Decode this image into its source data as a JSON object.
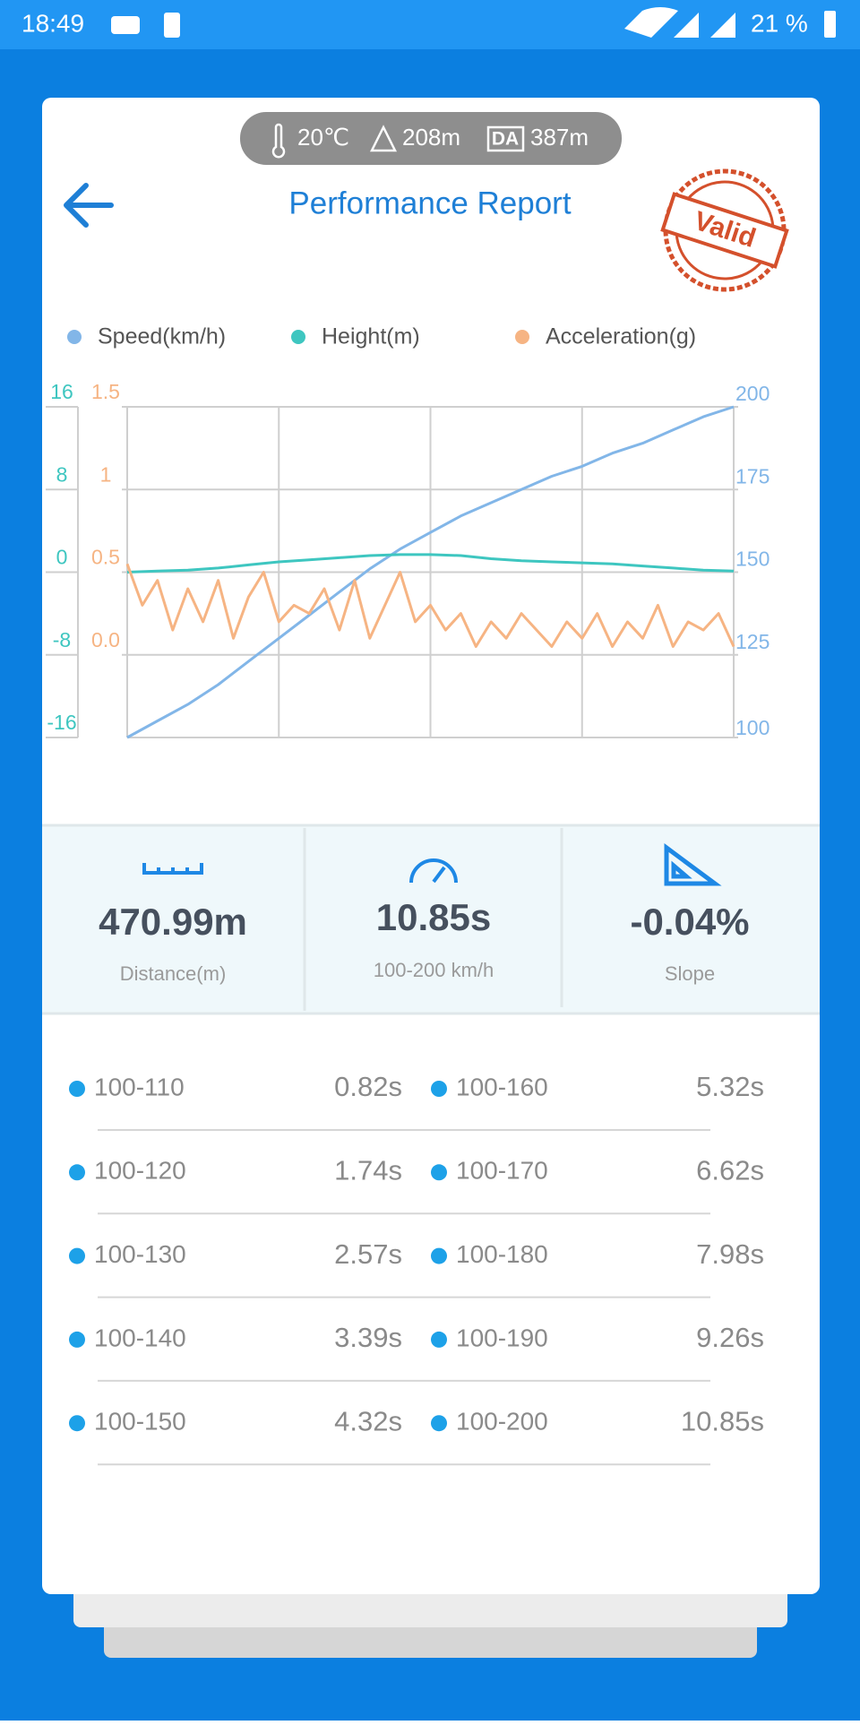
{
  "status_bar": {
    "time": "18:49",
    "battery": "21 %"
  },
  "conditions": {
    "temperature": "20℃",
    "altitude": "208m",
    "density_altitude_badge": "DA",
    "density_altitude": "387m"
  },
  "header": {
    "title": "Performance Report",
    "stamp": "Valid"
  },
  "chart_data": {
    "type": "line",
    "series": [
      {
        "name": "Speed(km/h)",
        "color": "#82b6e8",
        "axis": "y2",
        "values": [
          100,
          105,
          110,
          116,
          123,
          130,
          137,
          144,
          151,
          157,
          162,
          167,
          171,
          175,
          179,
          182,
          186,
          189,
          193,
          197,
          200
        ]
      },
      {
        "name": "Height(m)",
        "color": "#3ec6c0",
        "values": [
          0,
          0.1,
          0.2,
          0.4,
          0.7,
          1.0,
          1.2,
          1.4,
          1.6,
          1.7,
          1.7,
          1.6,
          1.3,
          1.1,
          1.0,
          0.9,
          0.8,
          0.6,
          0.4,
          0.2,
          0.1
        ]
      },
      {
        "name": "Acceleration(g)",
        "color": "#f6b483",
        "axis": "y3",
        "values": [
          0.55,
          0.3,
          0.45,
          0.15,
          0.4,
          0.2,
          0.45,
          0.1,
          0.35,
          0.5,
          0.2,
          0.3,
          0.25,
          0.4,
          0.15,
          0.45,
          0.1,
          0.3,
          0.5,
          0.2,
          0.3,
          0.15,
          0.25,
          0.05,
          0.2,
          0.1,
          0.25,
          0.15,
          0.05,
          0.2,
          0.1,
          0.25,
          0.05,
          0.2,
          0.1,
          0.3,
          0.05,
          0.2,
          0.15,
          0.25,
          0.05
        ]
      }
    ],
    "ylim": [
      -16,
      16
    ],
    "yticks": [
      -16,
      -8,
      0,
      8,
      16
    ],
    "y2lim": [
      100,
      200
    ],
    "y2ticks": [
      100,
      125,
      150,
      175,
      200
    ],
    "y3lim": [
      -0.5,
      1.5
    ],
    "y3ticks": [
      {
        "value": 0,
        "label": "0.0"
      },
      0.5,
      1,
      1.5
    ],
    "grid": true,
    "legend": "top"
  },
  "stats": [
    {
      "value": "470.99m",
      "label": "Distance(m)"
    },
    {
      "value": "10.85s",
      "label": "100-200 km/h"
    },
    {
      "value": "-0.04%",
      "label": "Slope"
    }
  ],
  "splits": [
    {
      "range": "100-110",
      "time": "0.82s"
    },
    {
      "range": "100-160",
      "time": "5.32s"
    },
    {
      "range": "100-120",
      "time": "1.74s"
    },
    {
      "range": "100-170",
      "time": "6.62s"
    },
    {
      "range": "100-130",
      "time": "2.57s"
    },
    {
      "range": "100-180",
      "time": "7.98s"
    },
    {
      "range": "100-140",
      "time": "3.39s"
    },
    {
      "range": "100-190",
      "time": "9.26s"
    },
    {
      "range": "100-150",
      "time": "4.32s"
    },
    {
      "range": "100-200",
      "time": "10.85s"
    }
  ]
}
